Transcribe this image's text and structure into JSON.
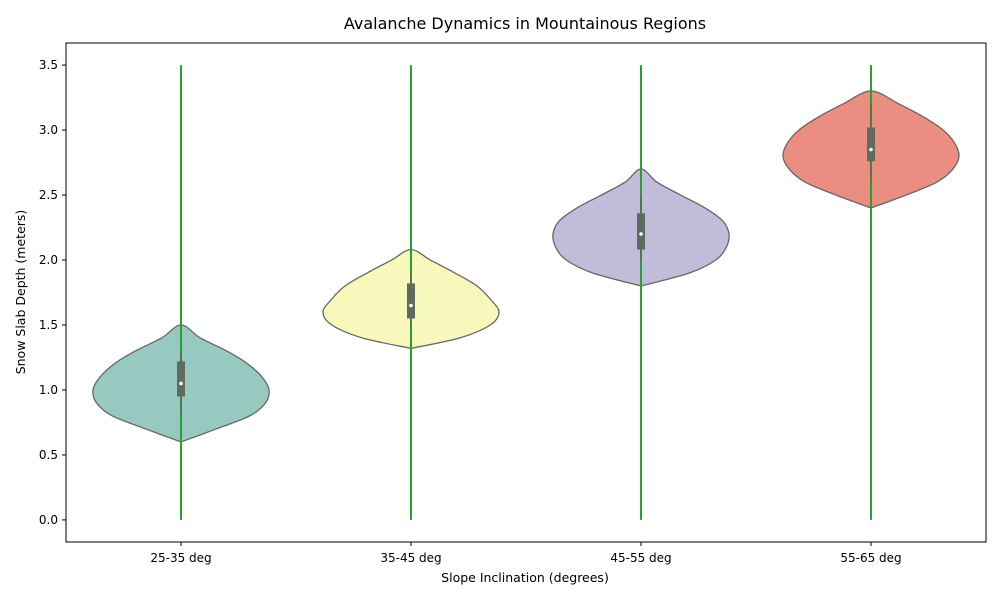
{
  "chart_data": {
    "type": "violin",
    "title": "Avalanche Dynamics in Mountainous Regions",
    "xlabel": "Slope Inclination (degrees)",
    "ylabel": "Snow Slab Depth (meters)",
    "ylim": [
      -0.17,
      3.67
    ],
    "yticks": [
      "0.0",
      "0.5",
      "1.0",
      "1.5",
      "2.0",
      "2.5",
      "3.0",
      "3.5"
    ],
    "categories": [
      "25-35 deg",
      "35-45 deg",
      "45-55 deg",
      "55-65 deg"
    ],
    "whisker_range": [
      0.0,
      3.5
    ],
    "grid": false,
    "violins": [
      {
        "category": "25-35 deg",
        "color": "#98c9c0",
        "min": 0.6,
        "max": 1.5,
        "q1": 0.95,
        "median": 1.05,
        "q3": 1.22,
        "inner_whisker": [
          0.8,
          1.3
        ],
        "profile_y": [
          0.6,
          0.7,
          0.8,
          0.9,
          1.0,
          1.1,
          1.2,
          1.3,
          1.4,
          1.5
        ],
        "profile_w": [
          0.0,
          0.4,
          0.78,
          0.96,
          1.0,
          0.92,
          0.76,
          0.52,
          0.22,
          0.0
        ]
      },
      {
        "category": "35-45 deg",
        "color": "#f8f8bd",
        "min": 1.32,
        "max": 2.08,
        "q1": 1.55,
        "median": 1.65,
        "q3": 1.82,
        "inner_whisker": [
          1.5,
          1.9
        ],
        "profile_y": [
          1.32,
          1.4,
          1.5,
          1.6,
          1.7,
          1.8,
          1.9,
          2.0,
          2.08
        ],
        "profile_w": [
          0.0,
          0.55,
          0.9,
          1.0,
          0.9,
          0.75,
          0.5,
          0.22,
          0.0
        ]
      },
      {
        "category": "45-55 deg",
        "color": "#c0bcd9",
        "min": 1.8,
        "max": 2.7,
        "q1": 2.08,
        "median": 2.2,
        "q3": 2.36,
        "inner_whisker": [
          2.0,
          2.5
        ],
        "profile_y": [
          1.8,
          1.9,
          2.0,
          2.1,
          2.2,
          2.3,
          2.4,
          2.5,
          2.6,
          2.7
        ],
        "profile_w": [
          0.0,
          0.55,
          0.85,
          0.97,
          1.0,
          0.93,
          0.73,
          0.45,
          0.18,
          0.0
        ]
      },
      {
        "category": "55-65 deg",
        "color": "#eb8d80",
        "min": 2.4,
        "max": 3.3,
        "q1": 2.76,
        "median": 2.85,
        "q3": 3.02,
        "inner_whisker": [
          2.6,
          3.2
        ],
        "profile_y": [
          2.4,
          2.5,
          2.6,
          2.7,
          2.8,
          2.9,
          3.0,
          3.1,
          3.2,
          3.3
        ],
        "profile_w": [
          0.0,
          0.4,
          0.75,
          0.93,
          1.0,
          0.95,
          0.82,
          0.6,
          0.32,
          0.0
        ]
      }
    ],
    "whisker_color": "#2ca02c",
    "box_color": "#5f6b5f",
    "edge_color": "#666666"
  }
}
